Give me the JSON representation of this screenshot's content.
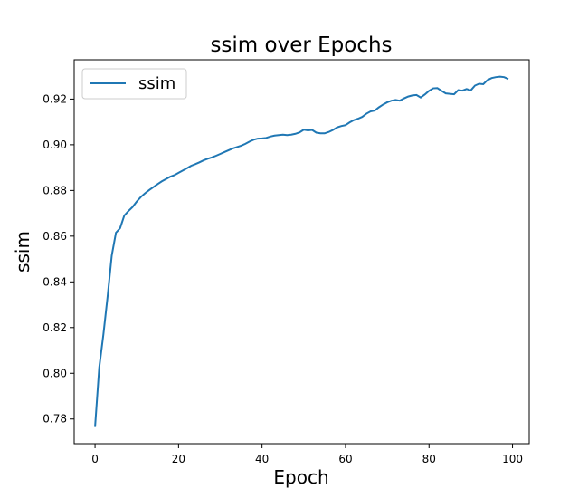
{
  "chart_data": {
    "type": "line",
    "title": "ssim over Epochs",
    "xlabel": "Epoch",
    "ylabel": "ssim",
    "xlim": [
      -5,
      104
    ],
    "ylim": [
      0.7692,
      0.9372
    ],
    "grid": false,
    "legend_position": "top-left",
    "x_ticks": [
      0,
      20,
      40,
      60,
      80,
      100
    ],
    "x_tick_labels": [
      "0",
      "20",
      "40",
      "60",
      "80",
      "100"
    ],
    "y_ticks": [
      0.78,
      0.8,
      0.82,
      0.84,
      0.86,
      0.88,
      0.9,
      0.92
    ],
    "y_tick_labels": [
      "0.78",
      "0.80",
      "0.82",
      "0.84",
      "0.86",
      "0.88",
      "0.90",
      "0.92"
    ],
    "colors": {
      "series": "#1f77b4",
      "axes": "#000000",
      "background": "#ffffff",
      "legend_border": "#cccccc"
    },
    "series": [
      {
        "name": "ssim",
        "x": [
          0,
          1,
          2,
          3,
          4,
          5,
          6,
          7,
          8,
          9,
          10,
          11,
          12,
          13,
          14,
          15,
          16,
          17,
          18,
          19,
          20,
          21,
          22,
          23,
          24,
          25,
          26,
          27,
          28,
          29,
          30,
          31,
          32,
          33,
          34,
          35,
          36,
          37,
          38,
          39,
          40,
          41,
          42,
          43,
          44,
          45,
          46,
          47,
          48,
          49,
          50,
          51,
          52,
          53,
          54,
          55,
          56,
          57,
          58,
          59,
          60,
          61,
          62,
          63,
          64,
          65,
          66,
          67,
          68,
          69,
          70,
          71,
          72,
          73,
          74,
          75,
          76,
          77,
          78,
          79,
          80,
          81,
          82,
          83,
          84,
          85,
          86,
          87,
          88,
          89,
          90,
          91,
          92,
          93,
          94,
          95,
          96,
          97,
          98,
          99
        ],
        "y": [
          0.7765,
          0.8025,
          0.817,
          0.8335,
          0.8515,
          0.8615,
          0.8635,
          0.869,
          0.871,
          0.8728,
          0.8752,
          0.8772,
          0.8788,
          0.8802,
          0.8815,
          0.8828,
          0.884,
          0.885,
          0.886,
          0.8867,
          0.8877,
          0.8887,
          0.8897,
          0.8908,
          0.8915,
          0.8923,
          0.8932,
          0.8939,
          0.8945,
          0.8952,
          0.896,
          0.8968,
          0.8976,
          0.8984,
          0.899,
          0.8996,
          0.9004,
          0.9014,
          0.9022,
          0.9027,
          0.9028,
          0.903,
          0.9036,
          0.904,
          0.9042,
          0.9044,
          0.9042,
          0.9044,
          0.9048,
          0.9054,
          0.9066,
          0.9063,
          0.9065,
          0.9053,
          0.905,
          0.905,
          0.9056,
          0.9065,
          0.9076,
          0.9082,
          0.9086,
          0.9098,
          0.9108,
          0.9114,
          0.9122,
          0.9136,
          0.9146,
          0.915,
          0.9164,
          0.9176,
          0.9186,
          0.9193,
          0.9196,
          0.9193,
          0.9203,
          0.9211,
          0.9216,
          0.9218,
          0.9207,
          0.922,
          0.9236,
          0.9247,
          0.9248,
          0.9236,
          0.9225,
          0.9223,
          0.9221,
          0.9239,
          0.9237,
          0.9244,
          0.9238,
          0.9259,
          0.9267,
          0.9265,
          0.9283,
          0.9292,
          0.9296,
          0.9298,
          0.9296,
          0.9288
        ]
      }
    ]
  }
}
